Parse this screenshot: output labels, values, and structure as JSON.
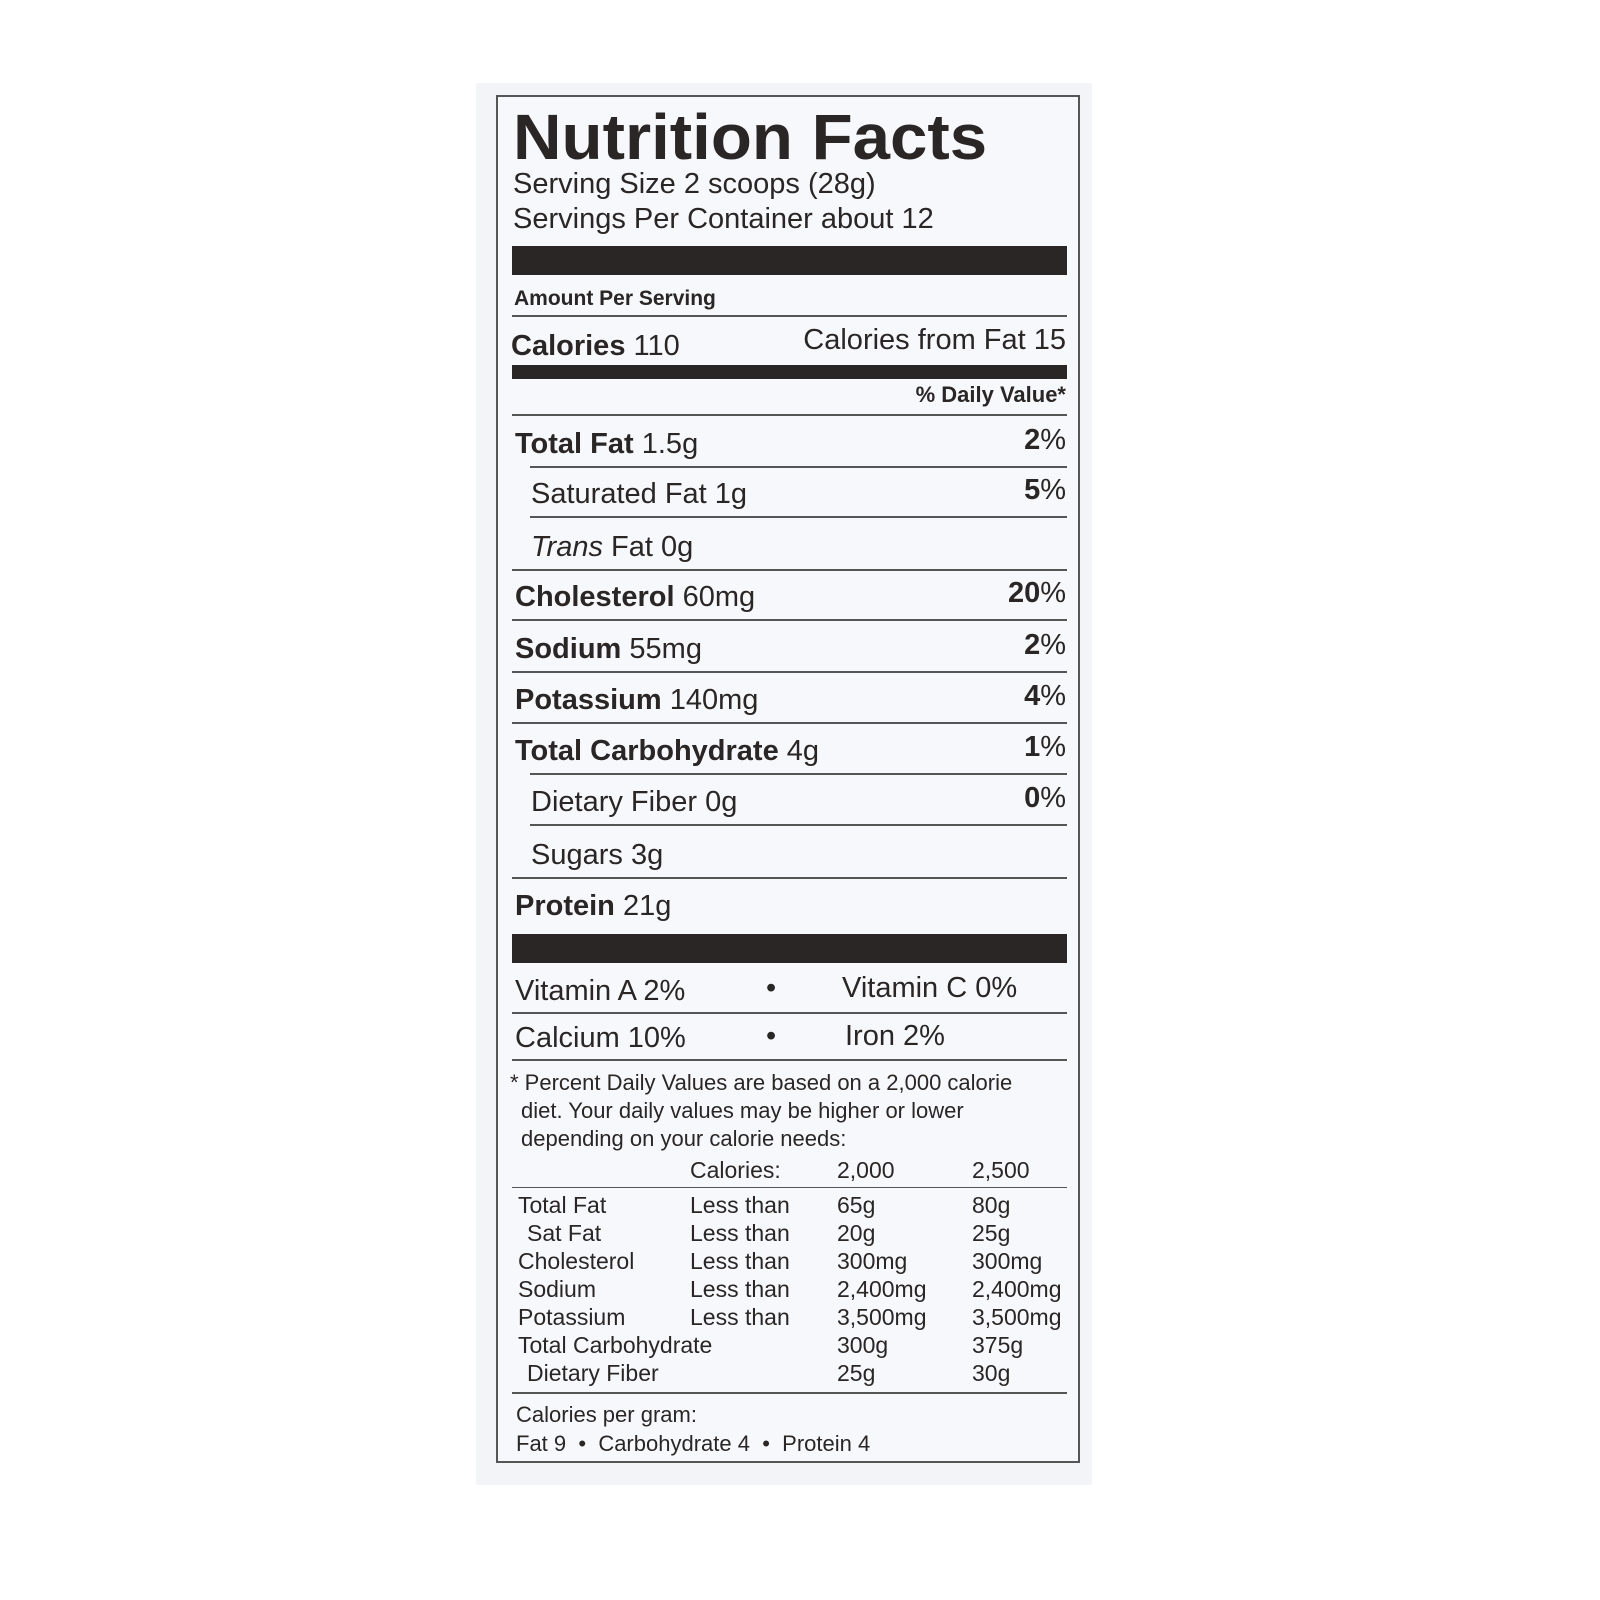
{
  "title": "Nutrition Facts",
  "serving_size": "Serving Size 2 scoops (28g)",
  "servings_per_container": "Servings Per Container about 12",
  "amount_per_serving": "Amount Per Serving",
  "calories": {
    "label": "Calories",
    "value": "110",
    "from_fat": "Calories from Fat 15"
  },
  "daily_value_header": "% Daily Value*",
  "nutrients": [
    {
      "label": "Total Fat",
      "amount": "1.5g",
      "dv": "2"
    },
    {
      "label": "Saturated Fat",
      "amount": "1g",
      "dv": "5"
    },
    {
      "label": "Trans",
      "label2": "Fat",
      "amount": "0g"
    },
    {
      "label": "Cholesterol",
      "amount": "60mg",
      "dv": "20"
    },
    {
      "label": "Sodium",
      "amount": "55mg",
      "dv": "2"
    },
    {
      "label": "Potassium",
      "amount": "140mg",
      "dv": "4"
    },
    {
      "label": "Total Carbohydrate",
      "amount": "4g",
      "dv": "1"
    },
    {
      "label": "Dietary Fiber",
      "amount": "0g",
      "dv": "0"
    },
    {
      "label": "Sugars",
      "amount": "3g"
    },
    {
      "label": "Protein",
      "amount": "21g"
    }
  ],
  "percent_sign": "%",
  "vitamins": [
    {
      "left": "Vitamin A 2%",
      "right": "Vitamin C 0%"
    },
    {
      "left": "Calcium 10%",
      "right": "Iron 2%"
    }
  ],
  "bullet": "•",
  "footnote": [
    "* Percent Daily Values are based on a 2,000 calorie",
    "diet. Your daily values may be higher or lower",
    "depending on your calorie needs:"
  ],
  "dv_table": {
    "header": [
      "",
      "Calories:",
      "2,000",
      "2,500"
    ],
    "rows": [
      [
        "Total Fat",
        "Less than",
        "65g",
        "80g"
      ],
      [
        " Sat Fat",
        "Less than",
        "20g",
        "25g"
      ],
      [
        "Cholesterol",
        "Less than",
        "300mg",
        "300mg"
      ],
      [
        "Sodium",
        "Less than",
        "2,400mg",
        "2,400mg"
      ],
      [
        "Potassium",
        "Less than",
        "3,500mg",
        "3,500mg"
      ],
      [
        "Total Carbohydrate",
        "",
        "300g",
        "375g"
      ],
      [
        " Dietary Fiber",
        "",
        "25g",
        "30g"
      ]
    ]
  },
  "calories_per_gram": {
    "label": "Calories per gram:",
    "fat": "Fat 9",
    "carb": "Carbohydrate 4",
    "protein": "Protein 4"
  }
}
